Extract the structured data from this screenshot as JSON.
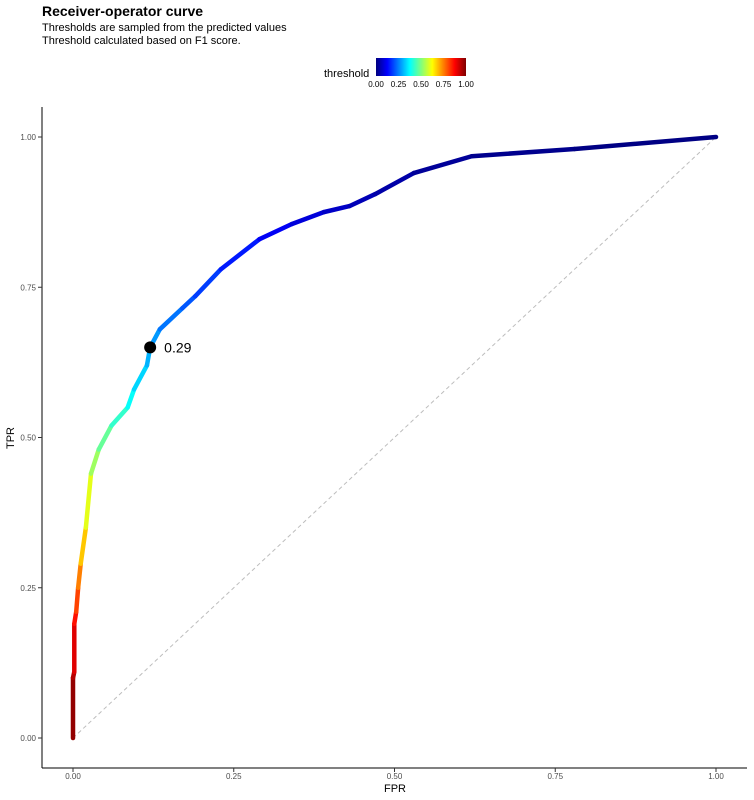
{
  "chart_data": {
    "type": "line",
    "title": "Receiver-operator curve",
    "subtitle_lines": [
      "Thresholds are sampled from the predicted values",
      "Threshold calculated based on F1 score."
    ],
    "xlabel": "FPR",
    "ylabel": "TPR",
    "xlim": [
      0,
      1
    ],
    "ylim": [
      0,
      1
    ],
    "x_ticks": [
      "0.00",
      "0.25",
      "0.50",
      "0.75",
      "1.00"
    ],
    "y_ticks": [
      "0.00",
      "0.25",
      "0.50",
      "0.75",
      "1.00"
    ],
    "grid": false,
    "legend": {
      "title": "threshold",
      "placement": "top",
      "ticks": [
        "0.00",
        "0.25",
        "0.50",
        "0.75",
        "1.00"
      ],
      "colormap": [
        "#00007F",
        "#0000FF",
        "#007FFF",
        "#00FFFF",
        "#7FFF7F",
        "#FFFF00",
        "#FF7F00",
        "#FF0000",
        "#7F0000"
      ]
    },
    "diagonal_reference": true,
    "curve": [
      {
        "fpr": 0.0,
        "tpr": 0.0,
        "threshold": 1.0
      },
      {
        "fpr": 0.0,
        "tpr": 0.1,
        "threshold": 0.96
      },
      {
        "fpr": 0.002,
        "tpr": 0.11,
        "threshold": 0.93
      },
      {
        "fpr": 0.002,
        "tpr": 0.19,
        "threshold": 0.88
      },
      {
        "fpr": 0.005,
        "tpr": 0.21,
        "threshold": 0.84
      },
      {
        "fpr": 0.008,
        "tpr": 0.25,
        "threshold": 0.78
      },
      {
        "fpr": 0.012,
        "tpr": 0.29,
        "threshold": 0.72
      },
      {
        "fpr": 0.02,
        "tpr": 0.35,
        "threshold": 0.64
      },
      {
        "fpr": 0.028,
        "tpr": 0.44,
        "threshold": 0.56
      },
      {
        "fpr": 0.04,
        "tpr": 0.48,
        "threshold": 0.5
      },
      {
        "fpr": 0.06,
        "tpr": 0.52,
        "threshold": 0.45
      },
      {
        "fpr": 0.085,
        "tpr": 0.55,
        "threshold": 0.4
      },
      {
        "fpr": 0.095,
        "tpr": 0.58,
        "threshold": 0.36
      },
      {
        "fpr": 0.115,
        "tpr": 0.62,
        "threshold": 0.31
      },
      {
        "fpr": 0.12,
        "tpr": 0.65,
        "threshold": 0.29
      },
      {
        "fpr": 0.135,
        "tpr": 0.68,
        "threshold": 0.26
      },
      {
        "fpr": 0.17,
        "tpr": 0.715,
        "threshold": 0.22
      },
      {
        "fpr": 0.19,
        "tpr": 0.735,
        "threshold": 0.2
      },
      {
        "fpr": 0.23,
        "tpr": 0.78,
        "threshold": 0.17
      },
      {
        "fpr": 0.29,
        "tpr": 0.83,
        "threshold": 0.13
      },
      {
        "fpr": 0.34,
        "tpr": 0.855,
        "threshold": 0.1
      },
      {
        "fpr": 0.39,
        "tpr": 0.875,
        "threshold": 0.08
      },
      {
        "fpr": 0.43,
        "tpr": 0.885,
        "threshold": 0.06
      },
      {
        "fpr": 0.47,
        "tpr": 0.905,
        "threshold": 0.05
      },
      {
        "fpr": 0.53,
        "tpr": 0.94,
        "threshold": 0.03
      },
      {
        "fpr": 0.62,
        "tpr": 0.968,
        "threshold": 0.02
      },
      {
        "fpr": 0.78,
        "tpr": 0.98,
        "threshold": 0.01
      },
      {
        "fpr": 1.0,
        "tpr": 1.0,
        "threshold": 0.0
      }
    ],
    "optimal_point": {
      "fpr": 0.12,
      "tpr": 0.65,
      "label": "0.29"
    }
  }
}
